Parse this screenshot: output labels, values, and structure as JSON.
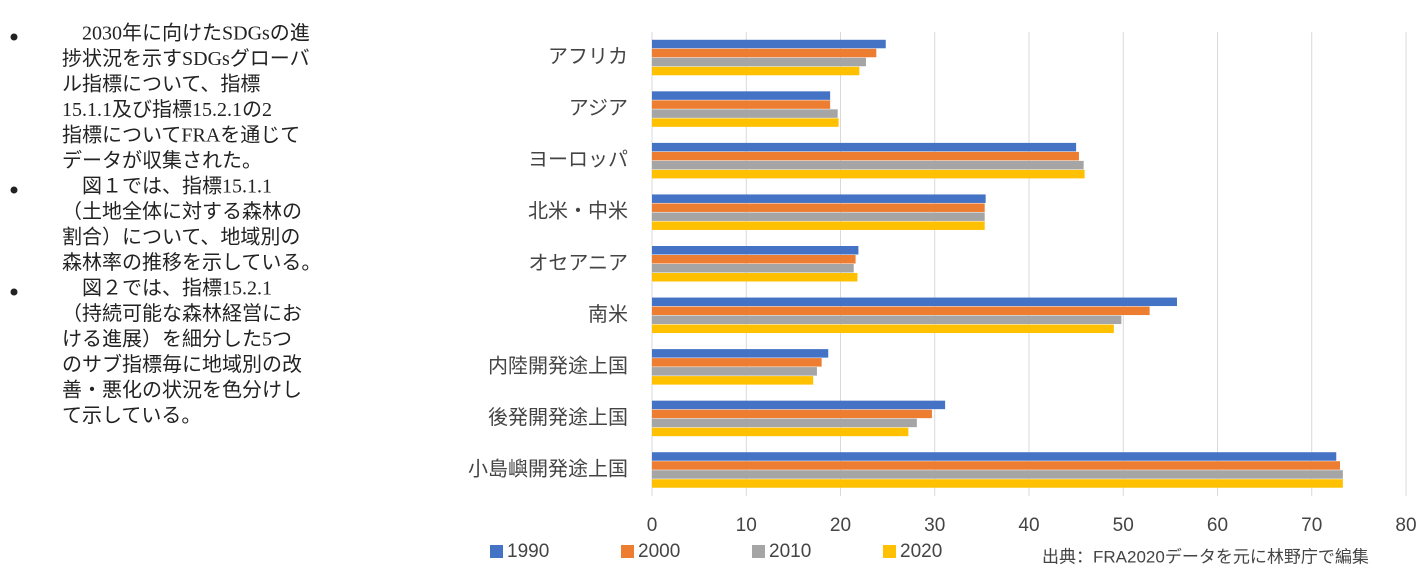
{
  "bullets": [
    [
      "　2030年に向けたSDGsの進",
      "捗状況を示すSDGsグローバ",
      "ル指標について、指標",
      "15.1.1及び指標15.2.1の2",
      "指標についてFRAを通じて",
      "データが収集された。"
    ],
    [
      "　図１では、指標15.1.1",
      "（土地全体に対する森林の",
      "割合）について、地域別の",
      "森林率の推移を示している。"
    ],
    [
      "　図２では、指標15.2.1",
      "（持続可能な森林経営にお",
      "ける進展）を細分した5つ",
      "のサブ指標毎に地域別の改",
      "善・悪化の状況を色分けし",
      "て示している。"
    ]
  ],
  "chart_data": {
    "type": "hbar",
    "categories": [
      "アフリカ",
      "アジア",
      "ヨーロッパ",
      "北米・中米",
      "オセアニア",
      "南米",
      "内陸開発途上国",
      "後発開発途上国",
      "小島嶼開発途上国"
    ],
    "series": [
      {
        "name": "1990",
        "color": "#4472c4",
        "values": [
          24.8,
          18.9,
          45.0,
          35.4,
          21.9,
          55.7,
          18.7,
          31.1,
          72.6
        ]
      },
      {
        "name": "2000",
        "color": "#ed7d31",
        "values": [
          23.8,
          18.9,
          45.3,
          35.3,
          21.6,
          52.8,
          18.0,
          29.7,
          73.0
        ]
      },
      {
        "name": "2010",
        "color": "#a5a5a5",
        "values": [
          22.7,
          19.7,
          45.8,
          35.3,
          21.4,
          49.8,
          17.5,
          28.1,
          73.3
        ]
      },
      {
        "name": "2020",
        "color": "#ffc000",
        "values": [
          22.0,
          19.8,
          45.9,
          35.3,
          21.8,
          49.0,
          17.1,
          27.2,
          73.3
        ]
      }
    ],
    "xlim": [
      0,
      80
    ],
    "xticks": [
      0,
      10,
      20,
      30,
      40,
      50,
      60,
      70,
      80
    ],
    "grid": true,
    "legend": "bottom",
    "source": "出典：FRA2020データを元に林野庁で編集"
  }
}
